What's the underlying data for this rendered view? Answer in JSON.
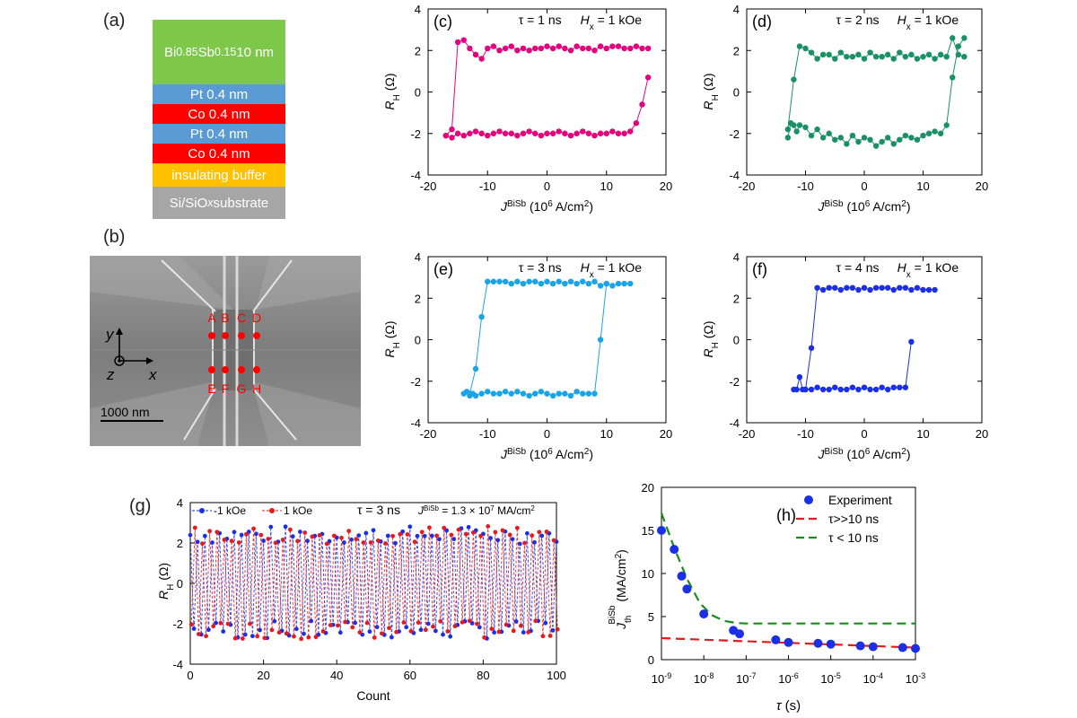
{
  "panel_labels": {
    "a": "(a)",
    "b": "(b)",
    "c": "(c)",
    "d": "(d)",
    "e": "(e)",
    "f": "(f)",
    "g": "(g)",
    "h": "(h)"
  },
  "stack": [
    {
      "html": "Bi<sub>0.85</sub>Sb<sub>0.15</sub> 10 nm",
      "color": "#7dc84a"
    },
    {
      "html": "Pt 0.4 nm",
      "color": "#5b9bd5"
    },
    {
      "html": "Co 0.4 nm",
      "color": "#ff0000"
    },
    {
      "html": "Pt 0.4 nm",
      "color": "#5b9bd5"
    },
    {
      "html": "Co 0.4 nm",
      "color": "#ff0000"
    },
    {
      "html": "insulating buffer",
      "color": "#ffc000"
    },
    {
      "html": "Si/SiO<sub><i>x</i></sub> substrate",
      "color": "#a6a6a6"
    }
  ],
  "sem": {
    "contact_labels_top": [
      "A",
      "B",
      "C",
      "D"
    ],
    "contact_labels_bottom": [
      "E",
      "F",
      "G",
      "H"
    ],
    "axis_x": "x",
    "axis_y": "y",
    "axis_z": "z",
    "scalebar": "1000 nm"
  },
  "chart_data": [
    {
      "id": "c",
      "type": "line",
      "color": "#e6007e",
      "tau": "τ = 1 ns",
      "field": "H",
      "field_sub": "x",
      "field_val": " = 1 kOe",
      "xlim": [
        -20,
        20
      ],
      "ylim": [
        -4,
        4
      ],
      "xticks": [
        "-20",
        "-10",
        "0",
        "10",
        "20"
      ],
      "yticks": [
        "-4",
        "-2",
        "0",
        "2",
        "4"
      ],
      "ylabel": "R",
      "ylabel_sub": "H",
      "ylabel_unit": " (Ω)",
      "xlabel": "J",
      "xlabel_sup": "BiSb",
      "xlabel_unit": "(10",
      "xlabel_unit_sup": "6",
      "xlabel_unit_tail": " A/cm",
      "xlabel_unit_sup2": "2",
      "xlabel_close": ")",
      "lower": {
        "x": [
          -17,
          -16,
          -15,
          -14,
          -13,
          -12,
          -11,
          -10,
          -9,
          -8,
          -7,
          -6,
          -5,
          -4,
          -3,
          -2,
          -1,
          0,
          1,
          2,
          3,
          4,
          5,
          6,
          7,
          8,
          9,
          10,
          11,
          12,
          13,
          14,
          15,
          16,
          17
        ],
        "y": [
          -2.1,
          -2.2,
          -2.0,
          -2.1,
          -2.0,
          -1.9,
          -2.0,
          -2.1,
          -2.0,
          -1.9,
          -2.0,
          -2.0,
          -2.1,
          -2.0,
          -1.9,
          -2.0,
          -2.1,
          -2.0,
          -2.0,
          -1.9,
          -2.0,
          -2.1,
          -2.0,
          -1.9,
          -2.0,
          -2.1,
          -2.0,
          -2.0,
          -1.9,
          -2.0,
          -2.0,
          -1.9,
          -1.5,
          -0.6,
          0.7
        ]
      },
      "upper": {
        "x": [
          17,
          16,
          15,
          14,
          13,
          12,
          11,
          10,
          9,
          8,
          7,
          6,
          5,
          4,
          3,
          2,
          1,
          0,
          -1,
          -2,
          -3,
          -4,
          -5,
          -6,
          -7,
          -8,
          -9,
          -10,
          -11,
          -12,
          -13,
          -14,
          -15,
          -16,
          -17
        ],
        "y": [
          2.1,
          2.1,
          2.2,
          2.1,
          2.1,
          2.2,
          2.2,
          2.1,
          2.2,
          2.0,
          2.1,
          2.1,
          2.2,
          2.0,
          2.1,
          2.2,
          2.1,
          2.2,
          2.1,
          2.1,
          2.0,
          2.1,
          2.0,
          2.2,
          2.1,
          2.0,
          2.2,
          2.1,
          1.6,
          1.8,
          2.1,
          2.5,
          2.4,
          -1.8,
          -2.1
        ]
      }
    },
    {
      "id": "d",
      "type": "line",
      "color": "#1a9164",
      "tau": "τ = 2 ns",
      "field": "H",
      "field_sub": "x",
      "field_val": " = 1 kOe",
      "xlim": [
        -20,
        20
      ],
      "ylim": [
        -4,
        4
      ],
      "xticks": [
        "-20",
        "-10",
        "0",
        "10",
        "20"
      ],
      "yticks": [
        "-4",
        "-2",
        "0",
        "2",
        "4"
      ],
      "ylabel": "R",
      "ylabel_sub": "H",
      "ylabel_unit": " (Ω)",
      "xlabel": "J",
      "xlabel_sup": "BiSb",
      "xlabel_unit": "(10",
      "xlabel_unit_sup": "6",
      "xlabel_unit_tail": " A/cm",
      "xlabel_unit_sup2": "2",
      "xlabel_close": ")",
      "lower": {
        "x": [
          -13,
          -12.5,
          -12,
          -11.5,
          -11,
          -10,
          -9,
          -8,
          -7,
          -6,
          -5,
          -4,
          -3,
          -2,
          -1,
          0,
          1,
          2,
          3,
          4,
          5,
          6,
          7,
          8,
          9,
          10,
          11,
          12,
          13,
          14,
          15,
          16,
          17
        ],
        "y": [
          -2.2,
          -1.5,
          -1.6,
          -1.9,
          -1.6,
          -1.7,
          -2.1,
          -1.8,
          -2.2,
          -2.0,
          -2.3,
          -2.2,
          -2.5,
          -2.1,
          -2.4,
          -2.2,
          -2.3,
          -2.6,
          -2.4,
          -2.2,
          -2.5,
          -2.3,
          -2.1,
          -2.2,
          -2.3,
          -2.1,
          -2.0,
          -1.9,
          -2.0,
          -1.6,
          0.7,
          2.2,
          2.6
        ]
      },
      "upper": {
        "x": [
          17,
          16,
          15,
          14,
          13,
          12,
          11,
          10,
          9,
          8,
          7,
          6,
          5,
          4,
          3,
          2,
          1,
          0,
          -1,
          -2,
          -3,
          -4,
          -5,
          -6,
          -7,
          -8,
          -9,
          -10,
          -11,
          -12,
          -13
        ],
        "y": [
          1.7,
          1.8,
          2.6,
          1.7,
          1.8,
          1.6,
          1.8,
          1.7,
          1.6,
          1.8,
          1.7,
          1.9,
          1.6,
          1.8,
          1.7,
          1.7,
          1.9,
          1.6,
          1.8,
          1.7,
          1.7,
          1.9,
          1.6,
          1.8,
          1.8,
          1.6,
          1.9,
          2.1,
          2.2,
          0.6,
          -1.8
        ]
      }
    },
    {
      "id": "e",
      "type": "line",
      "color": "#1aa3e6",
      "tau": "τ = 3 ns",
      "field": "H",
      "field_sub": "x",
      "field_val": " = 1 kOe",
      "xlim": [
        -20,
        20
      ],
      "ylim": [
        -4,
        4
      ],
      "xticks": [
        "-20",
        "-10",
        "0",
        "10",
        "20"
      ],
      "yticks": [
        "-4",
        "-2",
        "0",
        "2",
        "4"
      ],
      "ylabel": "R",
      "ylabel_sub": "H",
      "ylabel_unit": " (Ω)",
      "xlabel": "J",
      "xlabel_sup": "BiSb",
      "xlabel_unit": "(10",
      "xlabel_unit_sup": "6",
      "xlabel_unit_tail": " A/cm",
      "xlabel_unit_sup2": "2",
      "xlabel_close": ")",
      "lower": {
        "x": [
          -14,
          -13.5,
          -13,
          -12.5,
          -12,
          -11,
          -10,
          -9,
          -8,
          -7,
          -6,
          -5,
          -4,
          -3,
          -2,
          -1,
          0,
          1,
          2,
          3,
          4,
          5,
          6,
          7,
          8,
          9,
          10
        ],
        "y": [
          -2.6,
          -2.5,
          -2.7,
          -2.6,
          -2.7,
          -2.6,
          -2.5,
          -2.6,
          -2.6,
          -2.5,
          -2.6,
          -2.5,
          -2.6,
          -2.7,
          -2.6,
          -2.5,
          -2.6,
          -2.7,
          -2.6,
          -2.6,
          -2.7,
          -2.5,
          -2.6,
          -2.6,
          -2.6,
          0.0,
          2.7
        ]
      },
      "upper": {
        "x": [
          14,
          13,
          12,
          11,
          10,
          9,
          8,
          7,
          6,
          5,
          4,
          3,
          2,
          1,
          0,
          -1,
          -2,
          -3,
          -4,
          -5,
          -6,
          -7,
          -8,
          -9,
          -10,
          -11,
          -12,
          -13
        ],
        "y": [
          2.7,
          2.7,
          2.7,
          2.6,
          2.7,
          2.6,
          2.8,
          2.7,
          2.8,
          2.7,
          2.8,
          2.7,
          2.8,
          2.7,
          2.8,
          2.7,
          2.8,
          2.8,
          2.7,
          2.8,
          2.7,
          2.8,
          2.8,
          2.8,
          2.8,
          1.1,
          -1.4,
          -2.6
        ]
      }
    },
    {
      "id": "f",
      "type": "line",
      "color": "#1a2fe6",
      "tau": "τ = 4 ns",
      "field": "H",
      "field_sub": "x",
      "field_val": " = 1 kOe",
      "xlim": [
        -20,
        20
      ],
      "ylim": [
        -4,
        4
      ],
      "xticks": [
        "-20",
        "-10",
        "0",
        "10",
        "20"
      ],
      "yticks": [
        "-4",
        "-2",
        "0",
        "2",
        "4"
      ],
      "ylabel": "R",
      "ylabel_sub": "H",
      "ylabel_unit": " (Ω)",
      "xlabel": "J",
      "xlabel_sup": "BiSb",
      "xlabel_unit": "(10",
      "xlabel_unit_sup": "6",
      "xlabel_unit_tail": " A/cm",
      "xlabel_unit_sup2": "2",
      "xlabel_close": ")",
      "lower": {
        "x": [
          -12,
          -11.5,
          -11,
          -10.5,
          -10,
          -9,
          -8,
          -7,
          -6,
          -5,
          -4,
          -3,
          -2,
          -1,
          0,
          1,
          2,
          3,
          4,
          5,
          6,
          7,
          8
        ],
        "y": [
          -2.4,
          -2.4,
          -1.8,
          -2.4,
          -2.4,
          -2.4,
          -2.3,
          -2.4,
          -2.4,
          -2.3,
          -2.4,
          -2.4,
          -2.3,
          -2.4,
          -2.3,
          -2.4,
          -2.4,
          -2.3,
          -2.4,
          -2.3,
          -2.3,
          -2.3,
          -0.1
        ]
      },
      "upper": {
        "x": [
          12,
          11,
          10,
          9,
          8,
          7,
          6,
          5,
          4,
          3,
          2,
          1,
          0,
          -1,
          -2,
          -3,
          -4,
          -5,
          -6,
          -7,
          -8,
          -9,
          -10
        ],
        "y": [
          2.4,
          2.4,
          2.4,
          2.5,
          2.4,
          2.5,
          2.5,
          2.4,
          2.5,
          2.5,
          2.5,
          2.4,
          2.5,
          2.4,
          2.5,
          2.5,
          2.4,
          2.5,
          2.5,
          2.4,
          2.5,
          -0.4,
          -2.4
        ]
      }
    },
    {
      "id": "g",
      "type": "line",
      "legend": [
        {
          "name": "-1 kOe",
          "color": "#1a2fe6"
        },
        {
          "name": "1 kOe",
          "color": "#e61a1a"
        }
      ],
      "tau": "τ = 3 ns",
      "jtext": "J",
      "jtext_sup": "BiSb",
      "jtext_val": " = 1.3 × 10",
      "jtext_exp": "7",
      "jtext_unit": " MA/cm",
      "jtext_unit_sup": "2",
      "xlim": [
        0,
        100
      ],
      "ylim": [
        -4,
        4
      ],
      "xticks": [
        "0",
        "20",
        "40",
        "60",
        "80",
        "100"
      ],
      "yticks": [
        "-4",
        "-2",
        "0",
        "2",
        "4"
      ],
      "ylabel": "R",
      "ylabel_sub": "H",
      "ylabel_unit": " (Ω)",
      "xlabel": "Count",
      "count": 100,
      "high": 2.4,
      "low": -2.3
    },
    {
      "id": "h",
      "type": "scatter",
      "legend": [
        {
          "name": "Experiment",
          "kind": "marker",
          "color": "#1a2fe6"
        },
        {
          "name": "τ>>10 ns",
          "kind": "dash",
          "color": "#e61a1a"
        },
        {
          "name": "τ < 10 ns",
          "kind": "dash",
          "color": "#1a8a1a"
        }
      ],
      "xlim_log10": [
        -9,
        -3
      ],
      "ylim": [
        0,
        20
      ],
      "xticks": [
        {
          "m": "10",
          "e": "-9"
        },
        {
          "m": "10",
          "e": "-8"
        },
        {
          "m": "10",
          "e": "-7"
        },
        {
          "m": "10",
          "e": "-6"
        },
        {
          "m": "10",
          "e": "-5"
        },
        {
          "m": "10",
          "e": "-4"
        },
        {
          "m": "10",
          "e": "-3"
        }
      ],
      "yticks": [
        "0",
        "5",
        "10",
        "15",
        "20"
      ],
      "xlabel": "τ (s)",
      "ylabel": "J",
      "ylabel_sup": "BiSb",
      "ylabel_sub": "th",
      "ylabel_unit": " (MA/cm",
      "ylabel_unit_sup": "2",
      "ylabel_close": ")",
      "points": {
        "x": [
          1e-09,
          2e-09,
          3e-09,
          4e-09,
          1e-08,
          5e-08,
          7e-08,
          5e-07,
          1e-06,
          5e-06,
          1e-05,
          5e-05,
          0.0001,
          0.0005,
          0.001
        ],
        "y": [
          15,
          12.8,
          9.7,
          8.2,
          5.3,
          3.4,
          3.0,
          2.3,
          2.0,
          1.9,
          1.8,
          1.6,
          1.5,
          1.4,
          1.3
        ]
      },
      "fit_long": {
        "x": [
          1e-09,
          0.001
        ],
        "y": [
          2.5,
          1.4
        ]
      },
      "fit_short": {
        "x": [
          1e-09,
          2e-09,
          4e-09,
          8e-09,
          1.5e-08,
          3e-08,
          6e-08,
          1e-07,
          1e-06,
          1e-05,
          0.0001,
          0.001
        ],
        "y": [
          17,
          13,
          9.4,
          6.6,
          5.2,
          4.5,
          4.25,
          4.2,
          4.2,
          4.2,
          4.2,
          4.2
        ]
      }
    }
  ]
}
